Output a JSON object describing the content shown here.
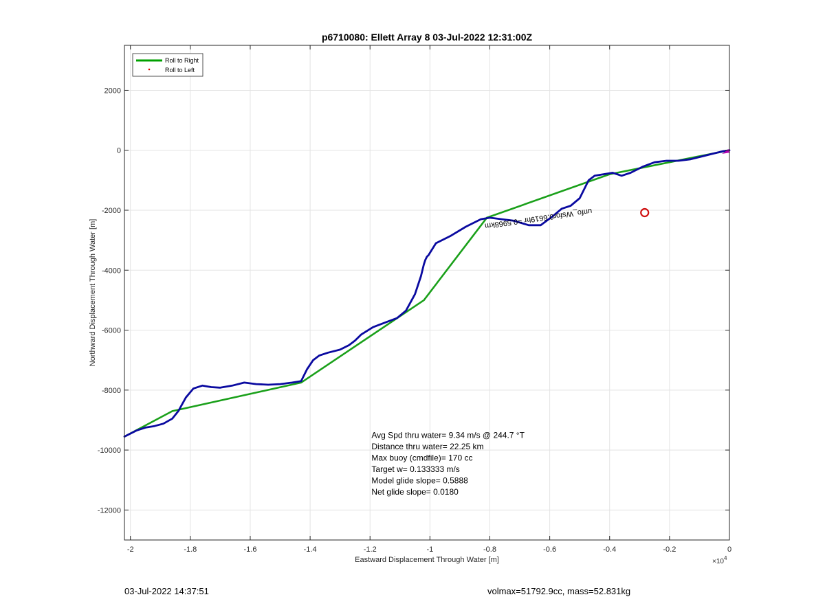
{
  "chart_data": {
    "type": "line",
    "title": "p6710080: Ellett Array 8 03-Jul-2022 12:31:00Z",
    "xlabel": "Eastward Displacement Through Water [m]",
    "ylabel": "Northward Displacement Through Water [m]",
    "x_exponent_label": "×10",
    "x_exponent_power": "4",
    "xlim": [
      -20200,
      0
    ],
    "ylim": [
      -13000,
      3500
    ],
    "x_ticks": [
      -20000,
      -18000,
      -16000,
      -14000,
      -12000,
      -10000,
      -8000,
      -6000,
      -4000,
      -2000,
      0
    ],
    "x_tick_labels": [
      "-2",
      "-1.8",
      "-1.6",
      "-1.4",
      "-1.2",
      "-1",
      "-0.8",
      "-0.6",
      "-0.4",
      "-0.2",
      "0"
    ],
    "y_ticks": [
      2000,
      0,
      -2000,
      -4000,
      -6000,
      -8000,
      -10000,
      -12000
    ],
    "y_tick_labels": [
      "2000",
      "0",
      "-2000",
      "-4000",
      "-6000",
      "-8000",
      "-10000",
      "-12000"
    ],
    "grid": true,
    "legend_position": "top-left",
    "legend": [
      {
        "label": "Roll to Right",
        "color": "#00a000",
        "style": "line"
      },
      {
        "label": "Roll to Left",
        "color": "#e00000",
        "style": "dot"
      }
    ],
    "series": [
      {
        "name": "Roll to Right",
        "color": "#1aa01a",
        "x": [
          -20200,
          -18600,
          -14300,
          -10200,
          -8100,
          -4000,
          0
        ],
        "y": [
          -9550,
          -8700,
          -7750,
          -5000,
          -2250,
          -800,
          0
        ]
      },
      {
        "color": "#0a0aa0",
        "x": [
          -20200,
          -19800,
          -19500,
          -19200,
          -18900,
          -18600,
          -18400,
          -18150,
          -17900,
          -17600,
          -17300,
          -17000,
          -16600,
          -16200,
          -15800,
          -15400,
          -15000,
          -14600,
          -14300,
          -14100,
          -13900,
          -13700,
          -13400,
          -13000,
          -12700,
          -12500,
          -12300,
          -11900,
          -11500,
          -11100,
          -10800,
          -10500,
          -10300,
          -10200,
          -10150,
          -10100,
          -10050,
          -9800,
          -9300,
          -8800,
          -8300,
          -8000,
          -7600,
          -7200,
          -6700,
          -6300,
          -5900,
          -5600,
          -5300,
          -5000,
          -4700,
          -4500,
          -4200,
          -3900,
          -3600,
          -3300,
          -2900,
          -2500,
          -2100,
          -1700,
          -1300,
          -900,
          -500,
          -200,
          0
        ],
        "y": [
          -9550,
          -9350,
          -9250,
          -9200,
          -9120,
          -8950,
          -8700,
          -8250,
          -7950,
          -7850,
          -7900,
          -7920,
          -7850,
          -7750,
          -7800,
          -7820,
          -7800,
          -7750,
          -7700,
          -7300,
          -7000,
          -6850,
          -6750,
          -6650,
          -6500,
          -6350,
          -6150,
          -5900,
          -5750,
          -5600,
          -5350,
          -4800,
          -4200,
          -3800,
          -3650,
          -3550,
          -3500,
          -3100,
          -2850,
          -2550,
          -2300,
          -2250,
          -2300,
          -2350,
          -2500,
          -2500,
          -2200,
          -1950,
          -1850,
          -1600,
          -1000,
          -850,
          -800,
          -750,
          -850,
          -750,
          -550,
          -400,
          -350,
          -350,
          -300,
          -200,
          -100,
          -30,
          0
        ]
      }
    ],
    "marker": {
      "x": -2830,
      "y": -2080,
      "color": "#d01010"
    },
    "rotated_annotation": "unfo_Wsfor0.6619hr =0.5968km",
    "rotated_annotation_pos": {
      "x": -4600,
      "y": -1950
    },
    "rotated_annotation_angle": 172,
    "stats_box": {
      "x": -11950,
      "y": -9600,
      "lines": [
        "Avg Spd thru water=  9.34 m/s @ 244.7 °T",
        "Distance thru water= 22.25 km",
        "Max buoy (cmdfile)= 170 cc",
        "Target w= 0.133333 m/s",
        "Model glide slope= 0.5888",
        "Net glide slope= 0.0180"
      ]
    }
  },
  "footer": {
    "date": "03-Jul-2022 14:37:51",
    "info": "volmax=51792.9cc, mass=52.831kg"
  }
}
